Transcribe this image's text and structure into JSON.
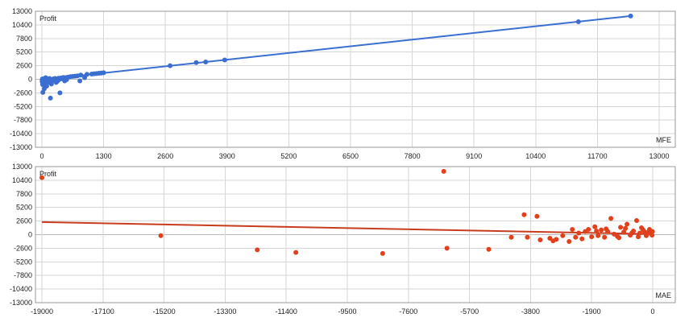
{
  "colors": {
    "mfe": "#3a6fd1",
    "mae": "#e0401c",
    "mae_trend": "#c83c1e",
    "grid": "#d6d6d6"
  },
  "chart_data": [
    {
      "type": "scatter",
      "ylabel": "Profit",
      "xlabel": "MFE",
      "xlim": [
        0,
        13000
      ],
      "ylim": [
        -13000,
        13000
      ],
      "xticks": [
        "0",
        "1300",
        "2600",
        "3900",
        "5200",
        "6500",
        "7800",
        "9100",
        "10400",
        "11700",
        "13000"
      ],
      "yticks": [
        "13000",
        "10400",
        "7800",
        "5200",
        "2600",
        "0",
        "-2600",
        "-5200",
        "-7800",
        "-10400",
        "-13000"
      ],
      "grid": true,
      "trendline": [
        [
          0,
          -80
        ],
        [
          12400,
          12100
        ]
      ],
      "points": [
        [
          12400,
          12100
        ],
        [
          11300,
          11000
        ],
        [
          3850,
          3700
        ],
        [
          3450,
          3300
        ],
        [
          3250,
          3200
        ],
        [
          2700,
          2600
        ],
        [
          1300,
          1250
        ],
        [
          1250,
          1200
        ],
        [
          1200,
          1150
        ],
        [
          1150,
          1100
        ],
        [
          1100,
          1050
        ],
        [
          1050,
          1000
        ],
        [
          950,
          950
        ],
        [
          900,
          300
        ],
        [
          820,
          800
        ],
        [
          800,
          -300
        ],
        [
          750,
          650
        ],
        [
          700,
          600
        ],
        [
          650,
          550
        ],
        [
          600,
          500
        ],
        [
          550,
          400
        ],
        [
          500,
          300
        ],
        [
          450,
          350
        ],
        [
          400,
          250
        ],
        [
          380,
          -2600
        ],
        [
          350,
          200
        ],
        [
          300,
          -600
        ],
        [
          280,
          150
        ],
        [
          250,
          100
        ],
        [
          220,
          -200
        ],
        [
          200,
          -900
        ],
        [
          180,
          -3600
        ],
        [
          150,
          -400
        ],
        [
          120,
          -100
        ],
        [
          100,
          -1300
        ],
        [
          80,
          300
        ],
        [
          60,
          -700
        ],
        [
          50,
          -1800
        ],
        [
          40,
          100
        ],
        [
          30,
          -200
        ],
        [
          20,
          -2500
        ],
        [
          15,
          -1000
        ],
        [
          10,
          50
        ],
        [
          8,
          -500
        ],
        [
          5,
          -300
        ],
        [
          350,
          -150
        ],
        [
          420,
          100
        ],
        [
          480,
          -300
        ],
        [
          520,
          -50
        ],
        [
          320,
          -400
        ],
        [
          240,
          50
        ],
        [
          260,
          -250
        ],
        [
          160,
          150
        ],
        [
          140,
          -600
        ],
        [
          90,
          -150
        ]
      ]
    },
    {
      "type": "scatter",
      "ylabel": "Profit",
      "xlabel": "MAE",
      "xlim": [
        -19000,
        0
      ],
      "ylim": [
        -13000,
        13000
      ],
      "xticks": [
        "-19000",
        "-17100",
        "-15200",
        "-13300",
        "-11400",
        "-9500",
        "-7600",
        "-5700",
        "-3800",
        "-1900",
        "0"
      ],
      "yticks": [
        "13000",
        "10400",
        "7800",
        "5200",
        "2600",
        "0",
        "-2600",
        "-5200",
        "-7800",
        "-10400",
        "-13000"
      ],
      "grid": true,
      "trendline": [
        [
          -19000,
          2400
        ],
        [
          0,
          100
        ]
      ],
      "points": [
        [
          -19000,
          10900
        ],
        [
          -15300,
          -200
        ],
        [
          -12300,
          -2900
        ],
        [
          -11100,
          -3400
        ],
        [
          -8400,
          -3600
        ],
        [
          -6500,
          12100
        ],
        [
          -6400,
          -2600
        ],
        [
          -5100,
          -2800
        ],
        [
          -4400,
          -500
        ],
        [
          -4000,
          3800
        ],
        [
          -3900,
          -500
        ],
        [
          -3600,
          3500
        ],
        [
          -3500,
          -1000
        ],
        [
          -3200,
          -700
        ],
        [
          -3100,
          -1200
        ],
        [
          -3000,
          -900
        ],
        [
          -2800,
          -200
        ],
        [
          -2600,
          -1300
        ],
        [
          -2500,
          1000
        ],
        [
          -2400,
          -500
        ],
        [
          -2300,
          300
        ],
        [
          -2200,
          -800
        ],
        [
          -2100,
          600
        ],
        [
          -2000,
          1000
        ],
        [
          -1900,
          -400
        ],
        [
          -1800,
          1500
        ],
        [
          -1700,
          -200
        ],
        [
          -1600,
          900
        ],
        [
          -1500,
          -500
        ],
        [
          -1400,
          600
        ],
        [
          -1300,
          3100
        ],
        [
          -1200,
          100
        ],
        [
          -1100,
          -300
        ],
        [
          -1000,
          1400
        ],
        [
          -900,
          500
        ],
        [
          -800,
          2000
        ],
        [
          -700,
          -100
        ],
        [
          -600,
          700
        ],
        [
          -500,
          2700
        ],
        [
          -400,
          300
        ],
        [
          -300,
          900
        ],
        [
          -200,
          -200
        ],
        [
          -150,
          400
        ],
        [
          -100,
          1000
        ],
        [
          -50,
          200
        ],
        [
          -20,
          -100
        ],
        [
          -10,
          600
        ],
        [
          -1750,
          700
        ],
        [
          -1450,
          1100
        ],
        [
          -1050,
          -600
        ],
        [
          -850,
          1200
        ],
        [
          -650,
          300
        ],
        [
          -450,
          -400
        ],
        [
          -350,
          1300
        ],
        [
          -250,
          500
        ]
      ]
    }
  ]
}
